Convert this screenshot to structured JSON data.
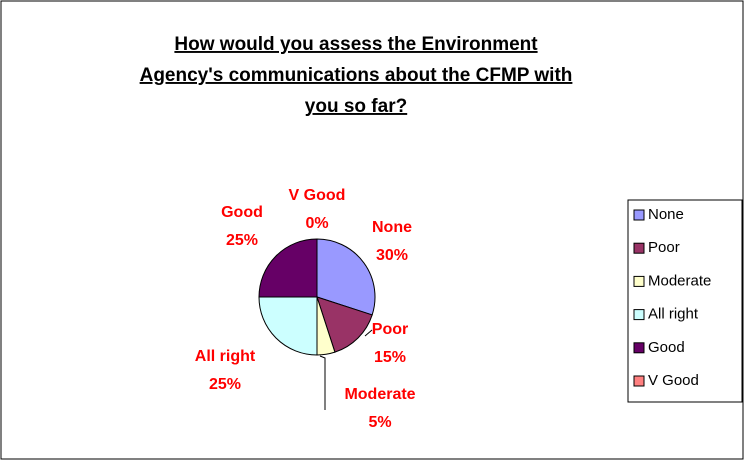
{
  "chart_data": {
    "type": "pie",
    "title": [
      "How would you assess the Environment ",
      "Agency's communications about the CFMP with",
      "you so far?"
    ],
    "categories": [
      "None",
      "Poor",
      "Moderate",
      "All right",
      "Good",
      "V Good"
    ],
    "values": [
      30,
      15,
      5,
      25,
      25,
      0
    ],
    "value_labels": [
      "30%",
      "15%",
      "5%",
      "25%",
      "25%",
      "0%"
    ],
    "colors": [
      "#9999ff",
      "#993366",
      "#ffffcc",
      "#ccffff",
      "#660066",
      "#ff8080"
    ],
    "legend": "right"
  }
}
